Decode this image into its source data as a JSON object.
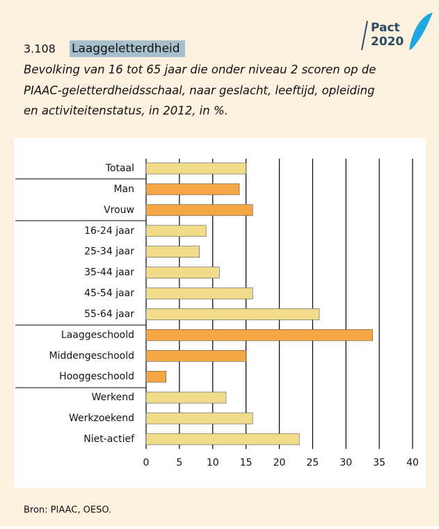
{
  "logo": {
    "line1": "Pact",
    "line2": "2020"
  },
  "chart_data": {
    "type": "bar",
    "orientation": "horizontal",
    "number": "3.108",
    "title": "Laaggeletterdheid",
    "subtitle": [
      "Bevolking van 16 tot 65 jaar die onder niveau 2 scoren op de",
      "PIAAC-geletterdheidsschaal, naar geslacht, leeftijd, opleiding",
      "en activiteitenstatus, in 2012, in %."
    ],
    "categories": [
      "Totaal",
      "Man",
      "Vrouw",
      "16-24 jaar",
      "25-34 jaar",
      "35-44 jaar",
      "45-54 jaar",
      "55-64 jaar",
      "Laaggeschoold",
      "Middengeschoold",
      "Hooggeschoold",
      "Werkend",
      "Werkzoekend",
      "Niet-actief"
    ],
    "values": [
      15,
      14,
      16,
      9,
      8,
      11,
      16,
      26,
      34,
      15,
      3,
      12,
      16,
      23
    ],
    "colors": [
      "#f1dc8c",
      "#f6a745",
      "#f6a745",
      "#f1dc8c",
      "#f1dc8c",
      "#f1dc8c",
      "#f1dc8c",
      "#f1dc8c",
      "#f6a745",
      "#f6a745",
      "#f6a745",
      "#f1dc8c",
      "#f1dc8c",
      "#f1dc8c"
    ],
    "xlim": [
      0,
      40
    ],
    "xticks": [
      0,
      5,
      10,
      15,
      20,
      25,
      30,
      35,
      40
    ],
    "grid": true,
    "source": "Bron: PIAAC, OESO."
  }
}
